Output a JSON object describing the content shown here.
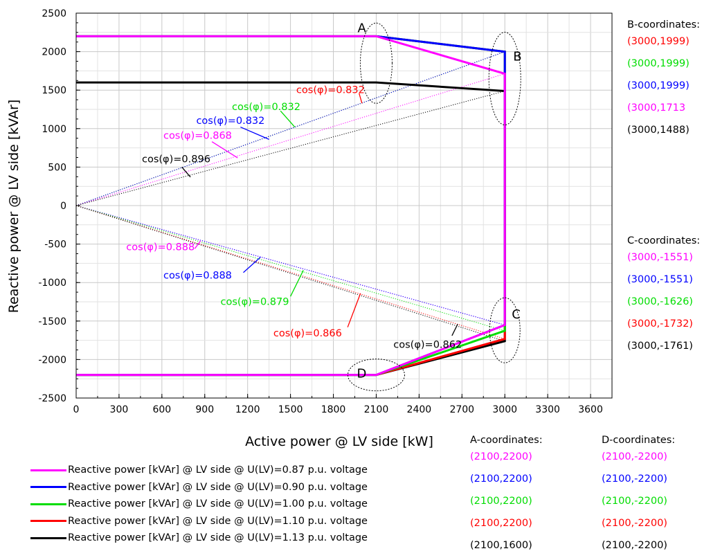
{
  "colors": {
    "0.87": "#ff00ff",
    "0.90": "#0000ff",
    "1.00": "#00dd00",
    "1.10": "#ff0000",
    "1.13": "#000000"
  },
  "chart_data": {
    "type": "line",
    "xlabel": "Active power @ LV side [kW]",
    "ylabel": "Reactive power @ LV side [kVAr]",
    "xlim": [
      0,
      3750
    ],
    "ylim": [
      -2500,
      2500
    ],
    "xticks": [
      0,
      300,
      600,
      900,
      1200,
      1500,
      1800,
      2100,
      2400,
      2700,
      3000,
      3300,
      3600
    ],
    "yticks": [
      -2500,
      -2000,
      -1500,
      -1000,
      -500,
      0,
      500,
      1000,
      1500,
      2000,
      2500
    ],
    "grid": true,
    "series": [
      {
        "name": "Reactive power [kVAr] @ LV side @ U(LV)=0.87 p.u. voltage",
        "color": "#ff00ff",
        "points": [
          [
            0,
            2200
          ],
          [
            2100,
            2200
          ],
          [
            3000,
            1713
          ],
          [
            3000,
            -1551
          ],
          [
            2100,
            -2200
          ],
          [
            0,
            -2200
          ]
        ]
      },
      {
        "name": "Reactive power [kVAr] @ LV side @ U(LV)=0.90 p.u. voltage",
        "color": "#0000ff",
        "points": [
          [
            0,
            2200
          ],
          [
            2100,
            2200
          ],
          [
            3000,
            1999
          ],
          [
            3000,
            -1551
          ],
          [
            2100,
            -2200
          ],
          [
            0,
            -2200
          ]
        ]
      },
      {
        "name": "Reactive power [kVAr] @ LV side @ U(LV)=1.00 p.u. voltage",
        "color": "#00dd00",
        "points": [
          [
            0,
            2200
          ],
          [
            2100,
            2200
          ],
          [
            3000,
            1999
          ],
          [
            3000,
            -1626
          ],
          [
            2100,
            -2200
          ],
          [
            0,
            -2200
          ]
        ]
      },
      {
        "name": "Reactive power [kVAr] @ LV side @ U(LV)=1.10 p.u. voltage",
        "color": "#ff0000",
        "points": [
          [
            0,
            2200
          ],
          [
            2100,
            2200
          ],
          [
            3000,
            1999
          ],
          [
            3000,
            -1732
          ],
          [
            2100,
            -2200
          ],
          [
            0,
            -2200
          ]
        ]
      },
      {
        "name": "Reactive power [kVAr] @ LV side @ U(LV)=1.13 p.u. voltage",
        "color": "#000000",
        "points": [
          [
            0,
            1600
          ],
          [
            2100,
            1600
          ],
          [
            3000,
            1488
          ],
          [
            3000,
            -1761
          ],
          [
            2100,
            -2200
          ],
          [
            0,
            -2200
          ]
        ]
      }
    ],
    "pf_rays": [
      {
        "color": "#ff0000",
        "to": [
          3000,
          1999
        ]
      },
      {
        "color": "#00dd00",
        "to": [
          3000,
          1999
        ]
      },
      {
        "color": "#0000ff",
        "to": [
          3000,
          1999
        ]
      },
      {
        "color": "#ff00ff",
        "to": [
          3000,
          1713
        ]
      },
      {
        "color": "#000000",
        "to": [
          3000,
          1488
        ]
      },
      {
        "color": "#ff00ff",
        "to": [
          3000,
          -1551
        ]
      },
      {
        "color": "#0000ff",
        "to": [
          3000,
          -1551
        ]
      },
      {
        "color": "#00dd00",
        "to": [
          3000,
          -1626
        ]
      },
      {
        "color": "#ff0000",
        "to": [
          3000,
          -1732
        ]
      },
      {
        "color": "#000000",
        "to": [
          3000,
          -1761
        ]
      }
    ],
    "pf_annotations": [
      {
        "text": "cos(φ)=0.832",
        "color": "#ff0000",
        "at": [
          1780,
          1460
        ],
        "pointer": [
          [
            1980,
            1460
          ],
          [
            2000,
            1330
          ]
        ]
      },
      {
        "text": "cos(φ)=0.832",
        "color": "#00dd00",
        "at": [
          1330,
          1240
        ],
        "pointer": [
          [
            1430,
            1230
          ],
          [
            1530,
            1020
          ]
        ]
      },
      {
        "text": "cos(φ)=0.832",
        "color": "#0000ff",
        "at": [
          1080,
          1060
        ],
        "pointer": [
          [
            1150,
            1020
          ],
          [
            1350,
            860
          ]
        ]
      },
      {
        "text": "cos(φ)=0.868",
        "color": "#ff00ff",
        "at": [
          850,
          870
        ],
        "pointer": [
          [
            950,
            830
          ],
          [
            1130,
            620
          ]
        ]
      },
      {
        "text": "cos(φ)=0.896",
        "color": "#000000",
        "at": [
          700,
          560
        ],
        "pointer": [
          [
            740,
            500
          ],
          [
            800,
            370
          ]
        ]
      },
      {
        "text": "cos(φ)=0.888",
        "color": "#ff00ff",
        "at": [
          590,
          -580
        ],
        "pointer": [
          [
            830,
            -560
          ],
          [
            870,
            -460
          ]
        ]
      },
      {
        "text": "cos(φ)=0.888",
        "color": "#0000ff",
        "at": [
          850,
          -950
        ],
        "pointer": [
          [
            1170,
            -870
          ],
          [
            1290,
            -670
          ]
        ]
      },
      {
        "text": "cos(φ)=0.879",
        "color": "#00dd00",
        "at": [
          1250,
          -1290
        ],
        "pointer": [
          [
            1500,
            -1180
          ],
          [
            1590,
            -840
          ]
        ]
      },
      {
        "text": "cos(φ)=0.866",
        "color": "#ff0000",
        "at": [
          1620,
          -1700
        ],
        "pointer": [
          [
            1900,
            -1580
          ],
          [
            1990,
            -1140
          ]
        ]
      },
      {
        "text": "cos(φ)=0.862",
        "color": "#000000",
        "at": [
          2460,
          -1850
        ],
        "pointer": [
          [
            2630,
            -1690
          ],
          [
            2670,
            -1540
          ]
        ]
      }
    ],
    "points": [
      {
        "label": "A",
        "at": [
          2100,
          2200
        ]
      },
      {
        "label": "B",
        "at": [
          3000,
          1850
        ]
      },
      {
        "label": "C",
        "at": [
          3000,
          -1500
        ]
      },
      {
        "label": "D",
        "at": [
          2100,
          -2200
        ]
      }
    ]
  },
  "coords": {
    "B": {
      "title": "B-coordinates:",
      "items": [
        {
          "text": "(3000,1999)",
          "color": "#ff0000"
        },
        {
          "text": "(3000,1999)",
          "color": "#00dd00"
        },
        {
          "text": "(3000,1999)",
          "color": "#0000ff"
        },
        {
          "text": "(3000,1713",
          "color": "#ff00ff"
        },
        {
          "text": "(3000,1488)",
          "color": "#000000"
        }
      ]
    },
    "C": {
      "title": "C-coordinates:",
      "items": [
        {
          "text": "(3000,-1551)",
          "color": "#ff00ff"
        },
        {
          "text": "(3000,-1551)",
          "color": "#0000ff"
        },
        {
          "text": "(3000,-1626)",
          "color": "#00dd00"
        },
        {
          "text": "(3000,-1732)",
          "color": "#ff0000"
        },
        {
          "text": "(3000,-1761)",
          "color": "#000000"
        }
      ]
    },
    "A": {
      "title": "A-coordinates:",
      "items": [
        {
          "text": "(2100,2200)",
          "color": "#ff00ff"
        },
        {
          "text": "(2100,2200)",
          "color": "#0000ff"
        },
        {
          "text": "(2100,2200)",
          "color": "#00dd00"
        },
        {
          "text": "(2100,2200)",
          "color": "#ff0000"
        },
        {
          "text": "(2100,1600)",
          "color": "#000000"
        }
      ]
    },
    "D": {
      "title": "D-coordinates:",
      "items": [
        {
          "text": "(2100,-2200)",
          "color": "#ff00ff"
        },
        {
          "text": "(2100,-2200)",
          "color": "#0000ff"
        },
        {
          "text": "(2100,-2200)",
          "color": "#00dd00"
        },
        {
          "text": "(2100,-2200)",
          "color": "#ff0000"
        },
        {
          "text": "(2100,-2200)",
          "color": "#000000"
        }
      ]
    }
  },
  "legend": [
    {
      "text": "Reactive power [kVAr] @ LV side @ U(LV)=0.87 p.u. voltage",
      "color": "#ff00ff"
    },
    {
      "text": "Reactive power [kVAr] @ LV side @ U(LV)=0.90 p.u. voltage",
      "color": "#0000ff"
    },
    {
      "text": "Reactive power [kVAr] @ LV side @ U(LV)=1.00 p.u. voltage",
      "color": "#00dd00"
    },
    {
      "text": "Reactive power [kVAr] @ LV side @ U(LV)=1.10 p.u. voltage",
      "color": "#ff0000"
    },
    {
      "text": "Reactive power [kVAr] @ LV side @ U(LV)=1.13 p.u. voltage",
      "color": "#000000"
    }
  ]
}
